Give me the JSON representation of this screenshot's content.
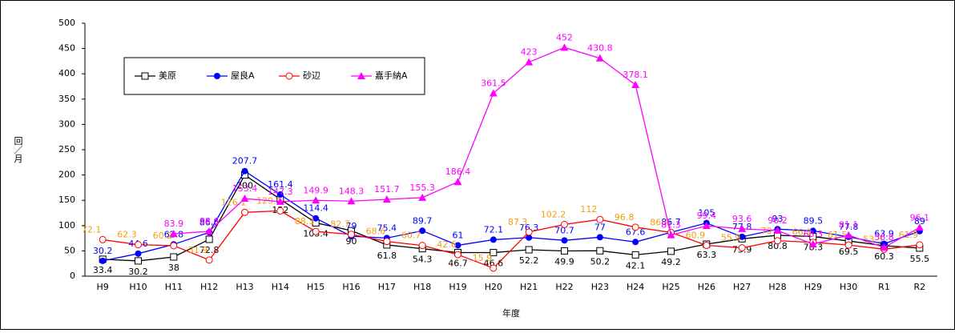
{
  "chart_data": {
    "type": "line",
    "x_label": "年度",
    "y_label": "回／月",
    "categories": [
      "H9",
      "H10",
      "H11",
      "H12",
      "H13",
      "H14",
      "H15",
      "H16",
      "H17",
      "H18",
      "H19",
      "H20",
      "H21",
      "H22",
      "H23",
      "H24",
      "H25",
      "H26",
      "H27",
      "H28",
      "H29",
      "H30",
      "R1",
      "R2"
    ],
    "ylim": [
      0,
      500
    ],
    "yticks": [
      0,
      50,
      100,
      150,
      200,
      250,
      300,
      350,
      400,
      450,
      500
    ],
    "series": [
      {
        "name": "美原",
        "color": "#000000",
        "marker": "square",
        "label_color": "#000000",
        "values": [
          33.4,
          30.2,
          38.0,
          72.8,
          200.0,
          152.0,
          105.4,
          90.0,
          61.8,
          54.3,
          46.7,
          46.6,
          52.2,
          49.9,
          50.2,
          42.1,
          49.2,
          63.3,
          73.9,
          80.8,
          78.3,
          69.5,
          60.3,
          55.5
        ]
      },
      {
        "name": "屋良A",
        "color": "#0000ff",
        "marker": "dot",
        "label_color": "#0000ff",
        "values": [
          30.2,
          44.6,
          62.8,
          86.6,
          207.7,
          161.4,
          114.4,
          79.0,
          75.4,
          89.7,
          61.0,
          72.1,
          76.3,
          70.7,
          77.0,
          67.6,
          86.7,
          105.0,
          77.8,
          93.0,
          89.5,
          77.8,
          63.9,
          89.0
        ]
      },
      {
        "name": "砂辺",
        "color": "#ff0000",
        "marker": "circle",
        "label_color": "#f39c12",
        "values": [
          72.1,
          62.3,
          60.2,
          31.9,
          126.1,
          129.1,
          88.3,
          82.7,
          68.6,
          60.7,
          42.6,
          15.9,
          87.3,
          102.2,
          112.0,
          96.8,
          86.4,
          60.9,
          55.9,
          70.0,
          66.9,
          61.5,
          53.3,
          61.9
        ]
      },
      {
        "name": "嘉手納A",
        "color": "#ff00ff",
        "marker": "triangle",
        "label_color": "#ff00ff",
        "values": [
          null,
          null,
          83.9,
          88.6,
          153.4,
          147.3,
          149.9,
          148.3,
          151.7,
          155.3,
          186.4,
          361.5,
          423.0,
          452.0,
          430.8,
          378.1,
          81.3,
          99.4,
          93.6,
          90.2,
          63.3,
          81.1,
          56.8,
          96.1
        ]
      }
    ]
  }
}
